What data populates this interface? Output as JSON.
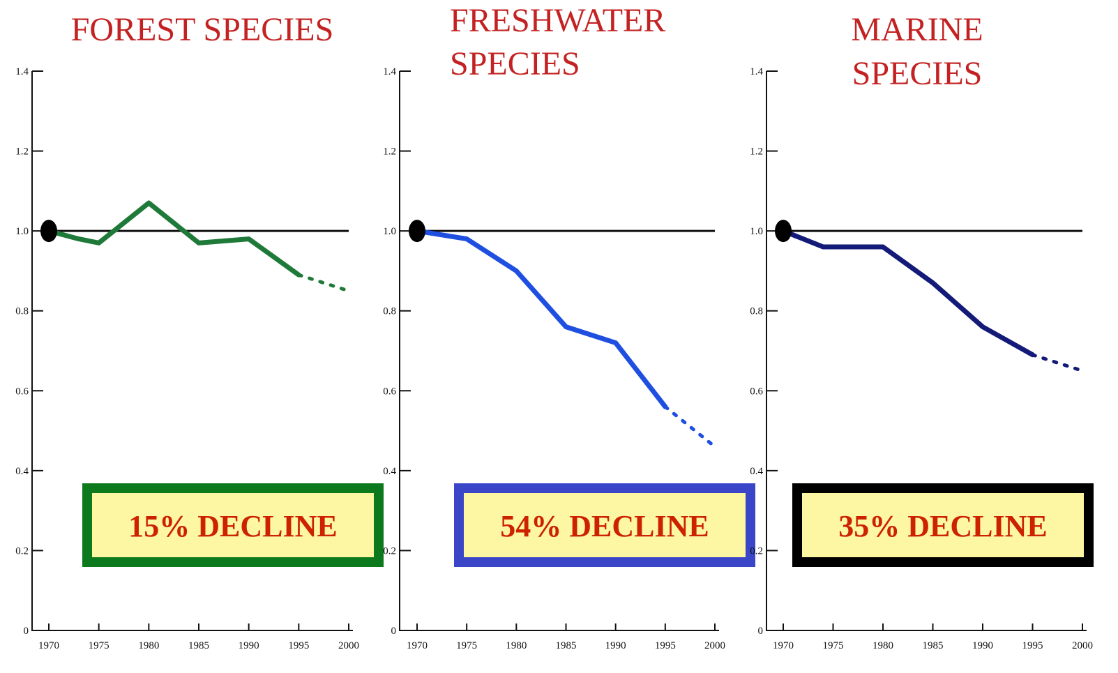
{
  "chart_data": [
    {
      "type": "line",
      "title": "FOREST SPECIES",
      "xlabel": "",
      "ylabel": "",
      "x_ticks": [
        "1970",
        "1975",
        "1980",
        "1985",
        "1990",
        "1995",
        "2000"
      ],
      "y_ticks": [
        "1.4",
        "1.2",
        "1.0",
        "0.8",
        "0.6",
        "0.4",
        "0.2",
        "0"
      ],
      "xlim": [
        1970,
        2000
      ],
      "ylim": [
        0,
        1.4
      ],
      "reference_line": 1.0,
      "start_marker": {
        "x": 1970,
        "y": 1.0
      },
      "series": [
        {
          "color": "#1f7a3a",
          "values": [
            {
              "x": 1970,
              "y": 1.0
            },
            {
              "x": 1973,
              "y": 0.98
            },
            {
              "x": 1975,
              "y": 0.97
            },
            {
              "x": 1980,
              "y": 1.07
            },
            {
              "x": 1985,
              "y": 0.97
            },
            {
              "x": 1990,
              "y": 0.98
            },
            {
              "x": 1995,
              "y": 0.89
            }
          ],
          "projection": [
            {
              "x": 1995,
              "y": 0.89
            },
            {
              "x": 2000,
              "y": 0.85
            }
          ]
        }
      ],
      "annotation": {
        "text": "15% DECLINE",
        "border_color": "#0c7a1c",
        "fill": "#fdf6a3"
      }
    },
    {
      "type": "line",
      "title": "FRESHWATER SPECIES",
      "title_lines": [
        "FRESHWATER",
        "SPECIES"
      ],
      "xlabel": "",
      "ylabel": "",
      "x_ticks": [
        "1970",
        "1975",
        "1980",
        "1985",
        "1990",
        "1995",
        "2000"
      ],
      "y_ticks": [
        "1.4",
        "1.2",
        "1.0",
        "0.8",
        "0.6",
        "0.4",
        "0.2",
        "0"
      ],
      "xlim": [
        1970,
        2000
      ],
      "ylim": [
        0,
        1.4
      ],
      "reference_line": 1.0,
      "start_marker": {
        "x": 1970,
        "y": 1.0
      },
      "series": [
        {
          "color": "#1e4fe0",
          "values": [
            {
              "x": 1970,
              "y": 1.0
            },
            {
              "x": 1975,
              "y": 0.98
            },
            {
              "x": 1980,
              "y": 0.9
            },
            {
              "x": 1985,
              "y": 0.76
            },
            {
              "x": 1990,
              "y": 0.72
            },
            {
              "x": 1995,
              "y": 0.56
            }
          ],
          "projection": [
            {
              "x": 1995,
              "y": 0.56
            },
            {
              "x": 2000,
              "y": 0.46
            }
          ]
        }
      ],
      "annotation": {
        "text": "54% DECLINE",
        "border_color": "#3a45c8",
        "fill": "#fdf6a3"
      }
    },
    {
      "type": "line",
      "title": "MARINE SPECIES",
      "title_lines": [
        "MARINE",
        "SPECIES"
      ],
      "xlabel": "",
      "ylabel": "",
      "x_ticks": [
        "1970",
        "1975",
        "1980",
        "1985",
        "1990",
        "1995",
        "2000"
      ],
      "y_ticks": [
        "1.4",
        "1.2",
        "1.0",
        "0.8",
        "0.6",
        "0.4",
        "0.2",
        "0"
      ],
      "xlim": [
        1970,
        2000
      ],
      "ylim": [
        0,
        1.4
      ],
      "reference_line": 1.0,
      "start_marker": {
        "x": 1970,
        "y": 1.0
      },
      "series": [
        {
          "color": "#141a78",
          "values": [
            {
              "x": 1970,
              "y": 1.0
            },
            {
              "x": 1974,
              "y": 0.96
            },
            {
              "x": 1980,
              "y": 0.96
            },
            {
              "x": 1985,
              "y": 0.87
            },
            {
              "x": 1990,
              "y": 0.76
            },
            {
              "x": 1995,
              "y": 0.69
            }
          ],
          "projection": [
            {
              "x": 1995,
              "y": 0.69
            },
            {
              "x": 2000,
              "y": 0.65
            }
          ]
        }
      ],
      "annotation": {
        "text": "35% DECLINE",
        "border_color": "#000000",
        "fill": "#fdf6a3"
      }
    }
  ]
}
